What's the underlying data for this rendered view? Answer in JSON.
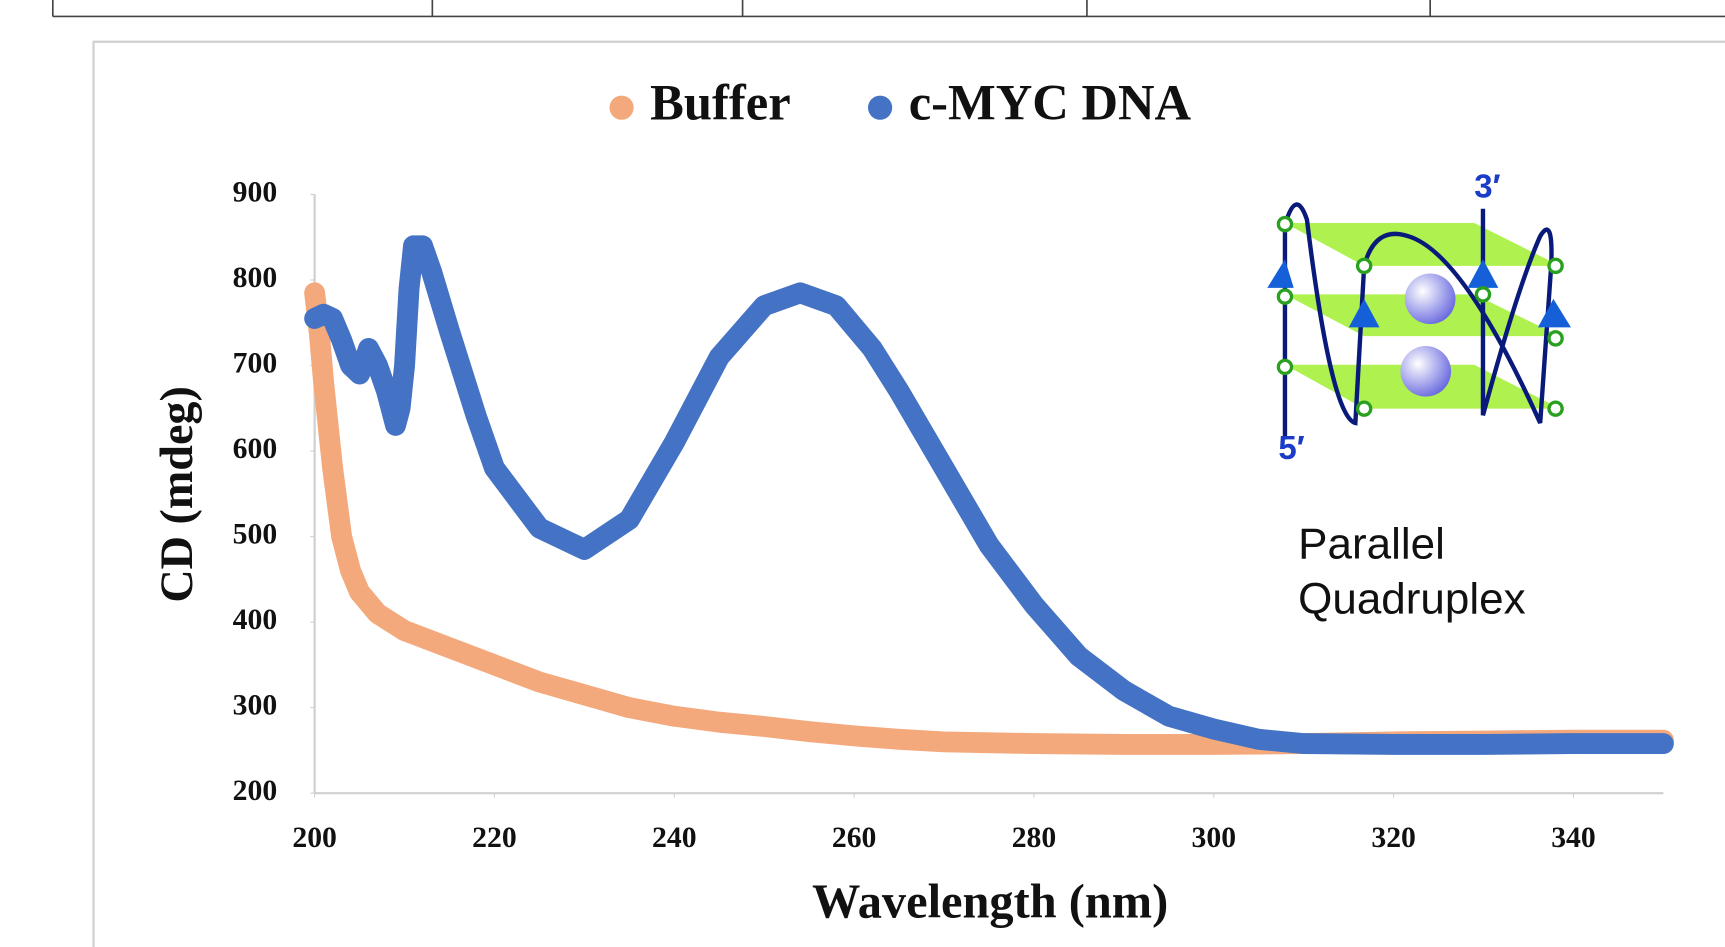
{
  "chart_data": {
    "type": "line",
    "x_label": "Wavelength (nm)",
    "y_label": "CD (mdeg)",
    "xlim": [
      200,
      350
    ],
    "xticks": [
      200,
      220,
      240,
      260,
      280,
      300,
      320,
      340
    ],
    "ylim": [
      200,
      900
    ],
    "yticks": [
      200,
      300,
      400,
      500,
      600,
      700,
      800,
      900
    ],
    "legend": "top",
    "annotation": [
      "Parallel",
      "Quadruplex"
    ],
    "inset_labels": [
      "3′",
      "5′"
    ],
    "series": [
      {
        "name": "Buffer",
        "color": "#f4a97c",
        "x": [
          200,
          200.5,
          201,
          202,
          203,
          204,
          205,
          207,
          210,
          215,
          220,
          225,
          230,
          235,
          240,
          245,
          250,
          255,
          260,
          265,
          270,
          280,
          290,
          300,
          310,
          320,
          330,
          340,
          350
        ],
        "values": [
          785,
          740,
          680,
          580,
          500,
          460,
          435,
          410,
          390,
          370,
          350,
          330,
          315,
          300,
          290,
          283,
          278,
          272,
          267,
          263,
          260,
          258,
          257,
          257,
          258,
          260,
          261,
          262,
          262
        ]
      },
      {
        "name": "c-MYC DNA",
        "color": "#4472c4",
        "x": [
          200,
          201,
          202,
          203,
          204,
          205,
          206,
          207,
          208,
          209,
          209.5,
          210,
          210.5,
          211,
          212,
          213,
          215,
          218,
          220,
          225,
          230,
          235,
          240,
          245,
          250,
          254,
          258,
          262,
          265,
          270,
          275,
          280,
          285,
          290,
          295,
          300,
          305,
          310,
          320,
          330,
          340,
          350
        ],
        "values": [
          755,
          760,
          755,
          730,
          700,
          690,
          720,
          700,
          670,
          630,
          650,
          700,
          790,
          840,
          840,
          810,
          740,
          640,
          580,
          510,
          485,
          520,
          610,
          710,
          770,
          785,
          770,
          720,
          670,
          580,
          490,
          420,
          360,
          320,
          290,
          275,
          263,
          258,
          257,
          257,
          258,
          258
        ]
      }
    ]
  }
}
